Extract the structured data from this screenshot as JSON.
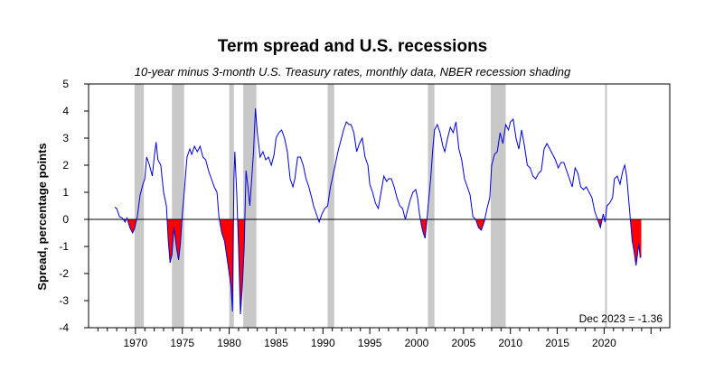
{
  "chart_data": {
    "type": "line",
    "title": "Term spread and U.S. recessions",
    "subtitle": "10-year minus 3-month U.S. Treasury rates, monthly data, NBER recession shading",
    "xlabel": "",
    "ylabel": "Spread, percentage points",
    "xlim": [
      1965,
      2027
    ],
    "ylim": [
      -4,
      5
    ],
    "x_ticks": [
      1970,
      1975,
      1980,
      1985,
      1990,
      1995,
      2000,
      2005,
      2010,
      2015,
      2020
    ],
    "x_tick_labels": [
      "1970",
      "1975",
      "1980",
      "1985",
      "1990",
      "1995",
      "2000",
      "2005",
      "2010",
      "2015",
      "2020"
    ],
    "y_ticks": [
      -4,
      -3,
      -2,
      -1,
      0,
      1,
      2,
      3,
      4,
      5
    ],
    "y_tick_labels": [
      "-4",
      "-3",
      "-2",
      "-1",
      "0",
      "1",
      "2",
      "3",
      "4",
      "5"
    ],
    "grid": false,
    "zero_line": true,
    "series_color": "#0000dd",
    "inversion_fill_color": "#ff0000",
    "recession_color": "#c8c8c8",
    "recessions": [
      [
        1969.9,
        1970.9
      ],
      [
        1973.9,
        1975.2
      ],
      [
        1980.0,
        1980.5
      ],
      [
        1981.5,
        1982.9
      ],
      [
        1990.5,
        1991.2
      ],
      [
        2001.2,
        2001.9
      ],
      [
        2007.9,
        2009.5
      ],
      [
        2020.1,
        2020.3
      ]
    ],
    "annotation": "Dec 2023 = -1.36",
    "series": [
      {
        "points": [
          [
            1967.8,
            0.45
          ],
          [
            1968.0,
            0.4
          ],
          [
            1968.3,
            0.1
          ],
          [
            1968.6,
            0.05
          ],
          [
            1968.9,
            -0.1
          ],
          [
            1969.1,
            0.05
          ],
          [
            1969.4,
            -0.3
          ],
          [
            1969.7,
            -0.5
          ],
          [
            1969.9,
            -0.35
          ],
          [
            1970.2,
            0.1
          ],
          [
            1970.5,
            0.9
          ],
          [
            1970.8,
            1.3
          ],
          [
            1971.0,
            1.5
          ],
          [
            1971.2,
            2.3
          ],
          [
            1971.5,
            2.0
          ],
          [
            1971.8,
            1.6
          ],
          [
            1972.0,
            2.3
          ],
          [
            1972.2,
            2.85
          ],
          [
            1972.4,
            2.2
          ],
          [
            1972.7,
            2.0
          ],
          [
            1973.0,
            1.0
          ],
          [
            1973.3,
            0.5
          ],
          [
            1973.5,
            -0.8
          ],
          [
            1973.7,
            -1.6
          ],
          [
            1973.9,
            -1.3
          ],
          [
            1974.1,
            -0.3
          ],
          [
            1974.4,
            -1.1
          ],
          [
            1974.6,
            -1.5
          ],
          [
            1974.8,
            -0.9
          ],
          [
            1975.0,
            0.2
          ],
          [
            1975.2,
            1.0
          ],
          [
            1975.5,
            2.3
          ],
          [
            1975.8,
            2.6
          ],
          [
            1976.0,
            2.4
          ],
          [
            1976.3,
            2.7
          ],
          [
            1976.6,
            2.5
          ],
          [
            1976.9,
            2.7
          ],
          [
            1977.2,
            2.3
          ],
          [
            1977.5,
            2.2
          ],
          [
            1977.8,
            1.8
          ],
          [
            1978.1,
            1.5
          ],
          [
            1978.4,
            1.2
          ],
          [
            1978.7,
            1.0
          ],
          [
            1978.9,
            0.1
          ],
          [
            1979.2,
            -0.5
          ],
          [
            1979.5,
            -0.8
          ],
          [
            1979.8,
            -1.5
          ],
          [
            1980.0,
            -2.0
          ],
          [
            1980.2,
            -2.5
          ],
          [
            1980.35,
            -3.4
          ],
          [
            1980.5,
            1.5
          ],
          [
            1980.6,
            2.5
          ],
          [
            1980.8,
            1.0
          ],
          [
            1981.0,
            -1.0
          ],
          [
            1981.2,
            -3.5
          ],
          [
            1981.4,
            -2.5
          ],
          [
            1981.6,
            -1.0
          ],
          [
            1981.8,
            1.8
          ],
          [
            1982.0,
            1.2
          ],
          [
            1982.2,
            0.5
          ],
          [
            1982.4,
            1.5
          ],
          [
            1982.6,
            2.5
          ],
          [
            1982.8,
            4.1
          ],
          [
            1983.0,
            3.2
          ],
          [
            1983.3,
            2.3
          ],
          [
            1983.6,
            2.5
          ],
          [
            1983.9,
            2.2
          ],
          [
            1984.2,
            2.3
          ],
          [
            1984.5,
            2.0
          ],
          [
            1984.8,
            2.4
          ],
          [
            1985.0,
            3.0
          ],
          [
            1985.3,
            3.2
          ],
          [
            1985.6,
            3.3
          ],
          [
            1985.9,
            3.0
          ],
          [
            1986.2,
            2.5
          ],
          [
            1986.5,
            1.5
          ],
          [
            1986.8,
            1.2
          ],
          [
            1987.0,
            1.5
          ],
          [
            1987.3,
            2.3
          ],
          [
            1987.6,
            2.3
          ],
          [
            1987.9,
            2.0
          ],
          [
            1988.2,
            1.5
          ],
          [
            1988.5,
            1.2
          ],
          [
            1988.8,
            0.8
          ],
          [
            1989.0,
            0.5
          ],
          [
            1989.3,
            0.2
          ],
          [
            1989.6,
            -0.1
          ],
          [
            1989.9,
            0.2
          ],
          [
            1990.2,
            0.4
          ],
          [
            1990.5,
            0.5
          ],
          [
            1990.8,
            1.2
          ],
          [
            1991.0,
            1.5
          ],
          [
            1991.3,
            2.0
          ],
          [
            1991.6,
            2.5
          ],
          [
            1991.9,
            2.9
          ],
          [
            1992.2,
            3.3
          ],
          [
            1992.5,
            3.6
          ],
          [
            1992.8,
            3.5
          ],
          [
            1993.0,
            3.5
          ],
          [
            1993.3,
            3.2
          ],
          [
            1993.6,
            2.5
          ],
          [
            1993.9,
            2.8
          ],
          [
            1994.2,
            3.0
          ],
          [
            1994.5,
            2.3
          ],
          [
            1994.8,
            2.0
          ],
          [
            1995.0,
            1.3
          ],
          [
            1995.3,
            1.0
          ],
          [
            1995.6,
            0.6
          ],
          [
            1995.9,
            0.4
          ],
          [
            1996.2,
            1.0
          ],
          [
            1996.5,
            1.6
          ],
          [
            1996.8,
            1.4
          ],
          [
            1997.0,
            1.5
          ],
          [
            1997.3,
            1.5
          ],
          [
            1997.6,
            1.2
          ],
          [
            1997.9,
            0.8
          ],
          [
            1998.2,
            0.5
          ],
          [
            1998.5,
            0.4
          ],
          [
            1998.8,
            0.0
          ],
          [
            1999.0,
            0.3
          ],
          [
            1999.3,
            0.7
          ],
          [
            1999.6,
            1.0
          ],
          [
            1999.9,
            1.1
          ],
          [
            2000.1,
            0.8
          ],
          [
            2000.3,
            0.2
          ],
          [
            2000.5,
            -0.2
          ],
          [
            2000.7,
            -0.5
          ],
          [
            2000.9,
            -0.7
          ],
          [
            2001.1,
            0.0
          ],
          [
            2001.3,
            0.8
          ],
          [
            2001.5,
            1.5
          ],
          [
            2001.7,
            2.5
          ],
          [
            2001.9,
            3.3
          ],
          [
            2002.2,
            3.5
          ],
          [
            2002.5,
            3.2
          ],
          [
            2002.8,
            2.7
          ],
          [
            2003.0,
            2.5
          ],
          [
            2003.3,
            3.0
          ],
          [
            2003.6,
            3.4
          ],
          [
            2003.9,
            3.2
          ],
          [
            2004.2,
            3.6
          ],
          [
            2004.5,
            2.6
          ],
          [
            2004.8,
            2.2
          ],
          [
            2005.1,
            1.5
          ],
          [
            2005.4,
            1.2
          ],
          [
            2005.7,
            0.9
          ],
          [
            2006.0,
            0.1
          ],
          [
            2006.3,
            0.0
          ],
          [
            2006.6,
            -0.3
          ],
          [
            2006.9,
            -0.4
          ],
          [
            2007.2,
            -0.1
          ],
          [
            2007.5,
            0.4
          ],
          [
            2007.8,
            0.8
          ],
          [
            2008.0,
            2.0
          ],
          [
            2008.3,
            2.4
          ],
          [
            2008.6,
            2.5
          ],
          [
            2008.9,
            3.2
          ],
          [
            2009.2,
            2.8
          ],
          [
            2009.5,
            3.5
          ],
          [
            2009.8,
            3.3
          ],
          [
            2010.0,
            3.6
          ],
          [
            2010.3,
            3.7
          ],
          [
            2010.6,
            3.0
          ],
          [
            2010.9,
            2.6
          ],
          [
            2011.2,
            3.3
          ],
          [
            2011.5,
            2.7
          ],
          [
            2011.8,
            2.0
          ],
          [
            2012.1,
            1.9
          ],
          [
            2012.4,
            1.6
          ],
          [
            2012.7,
            1.5
          ],
          [
            2013.0,
            1.7
          ],
          [
            2013.3,
            1.8
          ],
          [
            2013.6,
            2.6
          ],
          [
            2013.9,
            2.8
          ],
          [
            2014.2,
            2.6
          ],
          [
            2014.5,
            2.4
          ],
          [
            2014.8,
            2.2
          ],
          [
            2015.1,
            1.9
          ],
          [
            2015.4,
            2.1
          ],
          [
            2015.7,
            2.1
          ],
          [
            2016.0,
            1.8
          ],
          [
            2016.3,
            1.5
          ],
          [
            2016.6,
            1.2
          ],
          [
            2016.9,
            1.9
          ],
          [
            2017.2,
            1.7
          ],
          [
            2017.5,
            1.2
          ],
          [
            2017.8,
            1.1
          ],
          [
            2018.1,
            1.2
          ],
          [
            2018.4,
            1.0
          ],
          [
            2018.7,
            0.8
          ],
          [
            2019.0,
            0.3
          ],
          [
            2019.3,
            0.0
          ],
          [
            2019.6,
            -0.3
          ],
          [
            2019.9,
            0.2
          ],
          [
            2020.1,
            -0.1
          ],
          [
            2020.3,
            0.5
          ],
          [
            2020.6,
            0.6
          ],
          [
            2020.9,
            0.8
          ],
          [
            2021.1,
            1.5
          ],
          [
            2021.4,
            1.6
          ],
          [
            2021.7,
            1.3
          ],
          [
            2022.0,
            1.8
          ],
          [
            2022.2,
            2.0
          ],
          [
            2022.4,
            1.6
          ],
          [
            2022.6,
            0.8
          ],
          [
            2022.8,
            0.0
          ],
          [
            2023.0,
            -0.8
          ],
          [
            2023.2,
            -1.2
          ],
          [
            2023.4,
            -1.7
          ],
          [
            2023.6,
            -1.2
          ],
          [
            2023.7,
            -0.9
          ],
          [
            2023.85,
            -1.4
          ],
          [
            2023.96,
            -1.36
          ]
        ]
      }
    ]
  }
}
